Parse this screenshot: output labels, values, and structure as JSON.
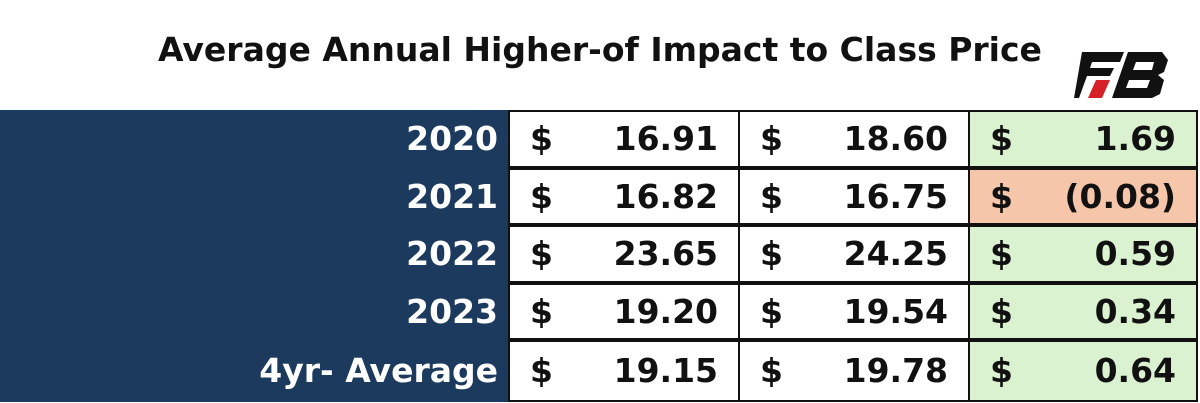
{
  "header": {
    "title": "Average Annual Higher-of Impact to Class Price"
  },
  "currency": "$",
  "table": {
    "rows": [
      {
        "label": "2020",
        "values": [
          "16.91",
          "18.60",
          "1.69"
        ]
      },
      {
        "label": "2021",
        "values": [
          "16.82",
          "16.75",
          "(0.08)"
        ]
      },
      {
        "label": "2022",
        "values": [
          "23.65",
          "24.25",
          "0.59"
        ]
      },
      {
        "label": "2023",
        "values": [
          "19.20",
          "19.54",
          "0.34"
        ]
      }
    ],
    "footer": {
      "label": "4yr- Average",
      "values": [
        "19.15",
        "19.78",
        "0.64"
      ]
    }
  }
}
